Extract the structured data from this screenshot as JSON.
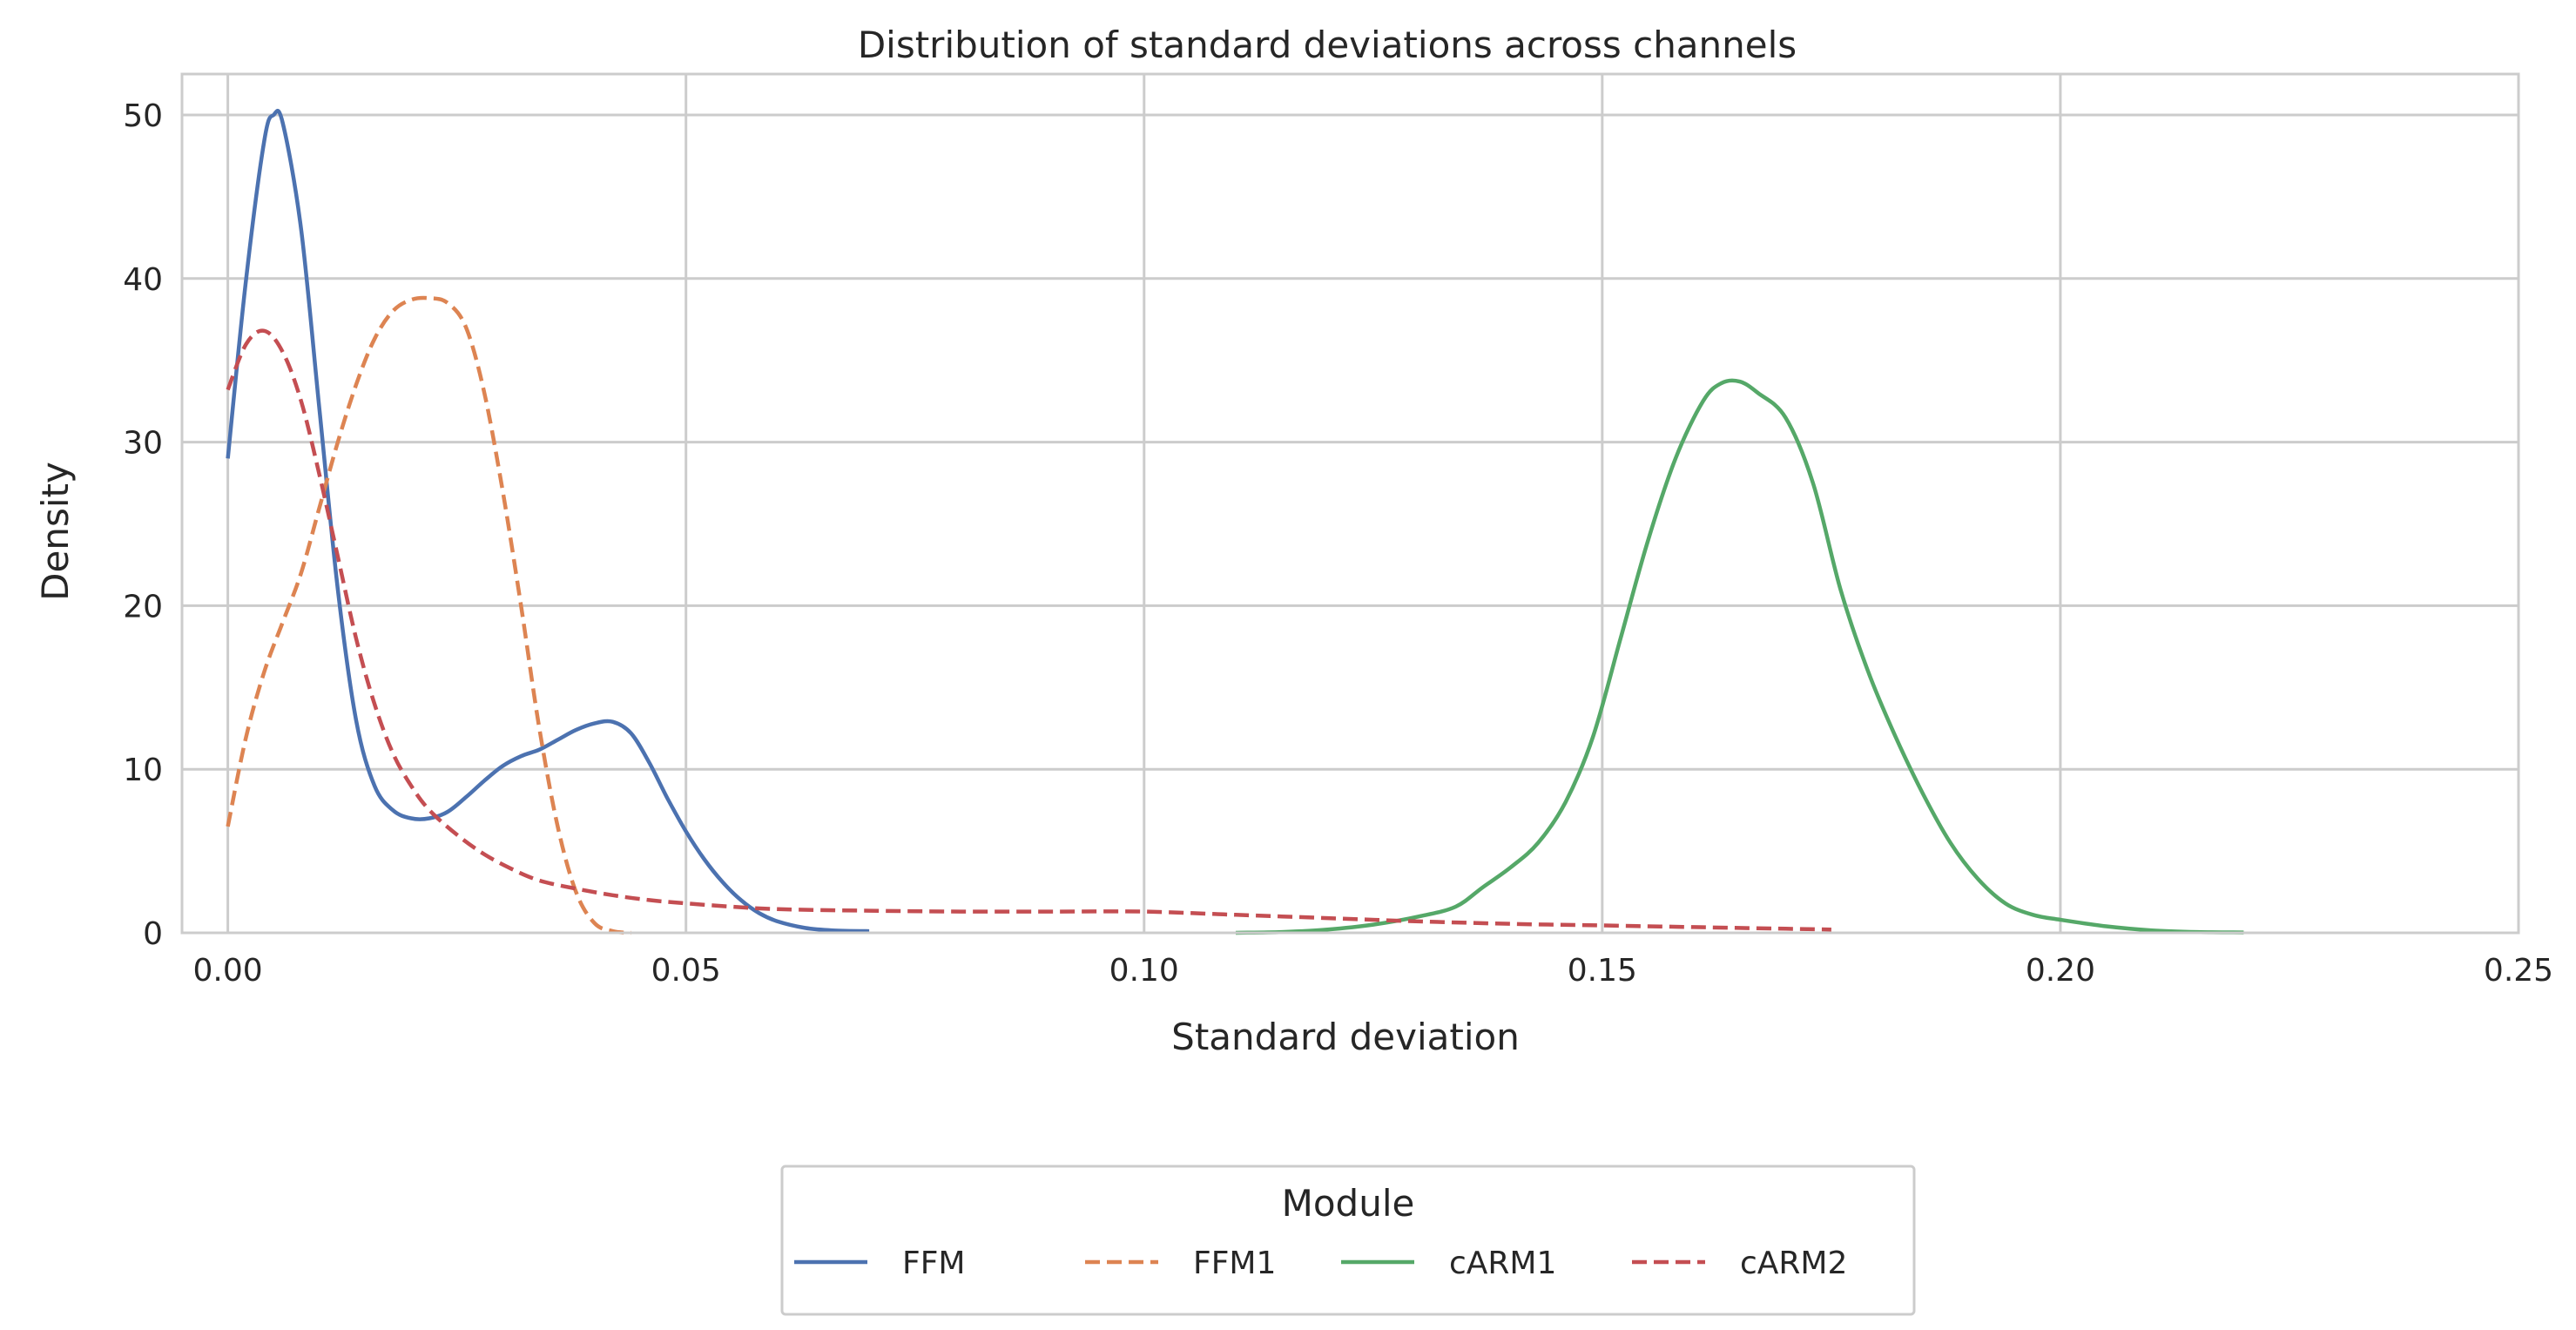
{
  "chart_data": {
    "type": "line",
    "title": "Distribution of standard deviations across channels",
    "xlabel": "Standard deviation",
    "ylabel": "Density",
    "xlim": [
      -0.005,
      0.25
    ],
    "ylim": [
      0,
      52.5
    ],
    "xticks": [
      0.0,
      0.05,
      0.1,
      0.15,
      0.2,
      0.25
    ],
    "xtick_labels": [
      "0.00",
      "0.05",
      "0.10",
      "0.15",
      "0.20",
      "0.25"
    ],
    "yticks": [
      0,
      10,
      20,
      30,
      40,
      50
    ],
    "ytick_labels": [
      "0",
      "10",
      "20",
      "30",
      "40",
      "50"
    ],
    "grid": true,
    "legend": {
      "title": "Module",
      "placement": "bottom-center"
    },
    "series": [
      {
        "name": "FFM",
        "color": "#4c72b0",
        "dash": "solid",
        "x": [
          0.0,
          0.002,
          0.004,
          0.005,
          0.006,
          0.008,
          0.01,
          0.012,
          0.014,
          0.016,
          0.018,
          0.02,
          0.022,
          0.024,
          0.026,
          0.028,
          0.03,
          0.032,
          0.034,
          0.036,
          0.038,
          0.04,
          0.042,
          0.044,
          0.046,
          0.048,
          0.05,
          0.052,
          0.054,
          0.056,
          0.058,
          0.06,
          0.063,
          0.066,
          0.07
        ],
        "y": [
          29,
          40,
          48.5,
          50,
          49.5,
          43,
          32,
          21,
          13,
          9,
          7.5,
          7,
          7,
          7.4,
          8.3,
          9.3,
          10.2,
          10.8,
          11.2,
          11.8,
          12.4,
          12.8,
          12.9,
          12.2,
          10.4,
          8.2,
          6.2,
          4.5,
          3.1,
          2,
          1.2,
          0.7,
          0.3,
          0.15,
          0.1
        ]
      },
      {
        "name": "FFM1",
        "color": "#dd8452",
        "dash": "dashed",
        "x": [
          0.0,
          0.002,
          0.004,
          0.006,
          0.008,
          0.01,
          0.012,
          0.014,
          0.016,
          0.018,
          0.02,
          0.022,
          0.024,
          0.026,
          0.028,
          0.03,
          0.032,
          0.034,
          0.036,
          0.038,
          0.04,
          0.042,
          0.044
        ],
        "y": [
          6.5,
          12,
          16,
          19,
          22,
          26,
          30,
          33.5,
          36.3,
          38,
          38.7,
          38.8,
          38.5,
          37,
          33,
          27,
          20,
          12.5,
          6.5,
          2.5,
          0.6,
          0.1,
          0
        ]
      },
      {
        "name": "cARM1",
        "color": "#55a868",
        "dash": "solid",
        "x": [
          0.11,
          0.115,
          0.12,
          0.125,
          0.13,
          0.134,
          0.137,
          0.14,
          0.143,
          0.146,
          0.149,
          0.152,
          0.155,
          0.158,
          0.161,
          0.163,
          0.165,
          0.167,
          0.17,
          0.173,
          0.176,
          0.179,
          0.182,
          0.185,
          0.188,
          0.191,
          0.194,
          0.197,
          0.2,
          0.205,
          0.21,
          0.215,
          0.22
        ],
        "y": [
          0,
          0.05,
          0.2,
          0.5,
          1,
          1.6,
          2.8,
          4,
          5.5,
          8,
          12,
          18,
          24,
          29,
          32.5,
          33.6,
          33.7,
          33,
          31.5,
          27.5,
          21,
          16,
          12,
          8.5,
          5.5,
          3.3,
          1.8,
          1.1,
          0.8,
          0.4,
          0.15,
          0.05,
          0.02
        ]
      },
      {
        "name": "cARM2",
        "color": "#c44e52",
        "dash": "dashed",
        "x": [
          0.0,
          0.002,
          0.004,
          0.006,
          0.008,
          0.01,
          0.012,
          0.014,
          0.016,
          0.018,
          0.02,
          0.022,
          0.025,
          0.028,
          0.031,
          0.034,
          0.038,
          0.042,
          0.046,
          0.05,
          0.055,
          0.06,
          0.07,
          0.08,
          0.09,
          0.1,
          0.11,
          0.12,
          0.13,
          0.14,
          0.15,
          0.16,
          0.17,
          0.175
        ],
        "y": [
          33.2,
          36,
          36.8,
          35.5,
          32.5,
          28,
          23,
          18,
          14,
          11,
          9,
          7.5,
          6,
          4.8,
          3.9,
          3.2,
          2.7,
          2.3,
          2,
          1.8,
          1.6,
          1.45,
          1.35,
          1.3,
          1.3,
          1.3,
          1.1,
          0.9,
          0.7,
          0.55,
          0.45,
          0.35,
          0.25,
          0.2
        ]
      }
    ]
  }
}
